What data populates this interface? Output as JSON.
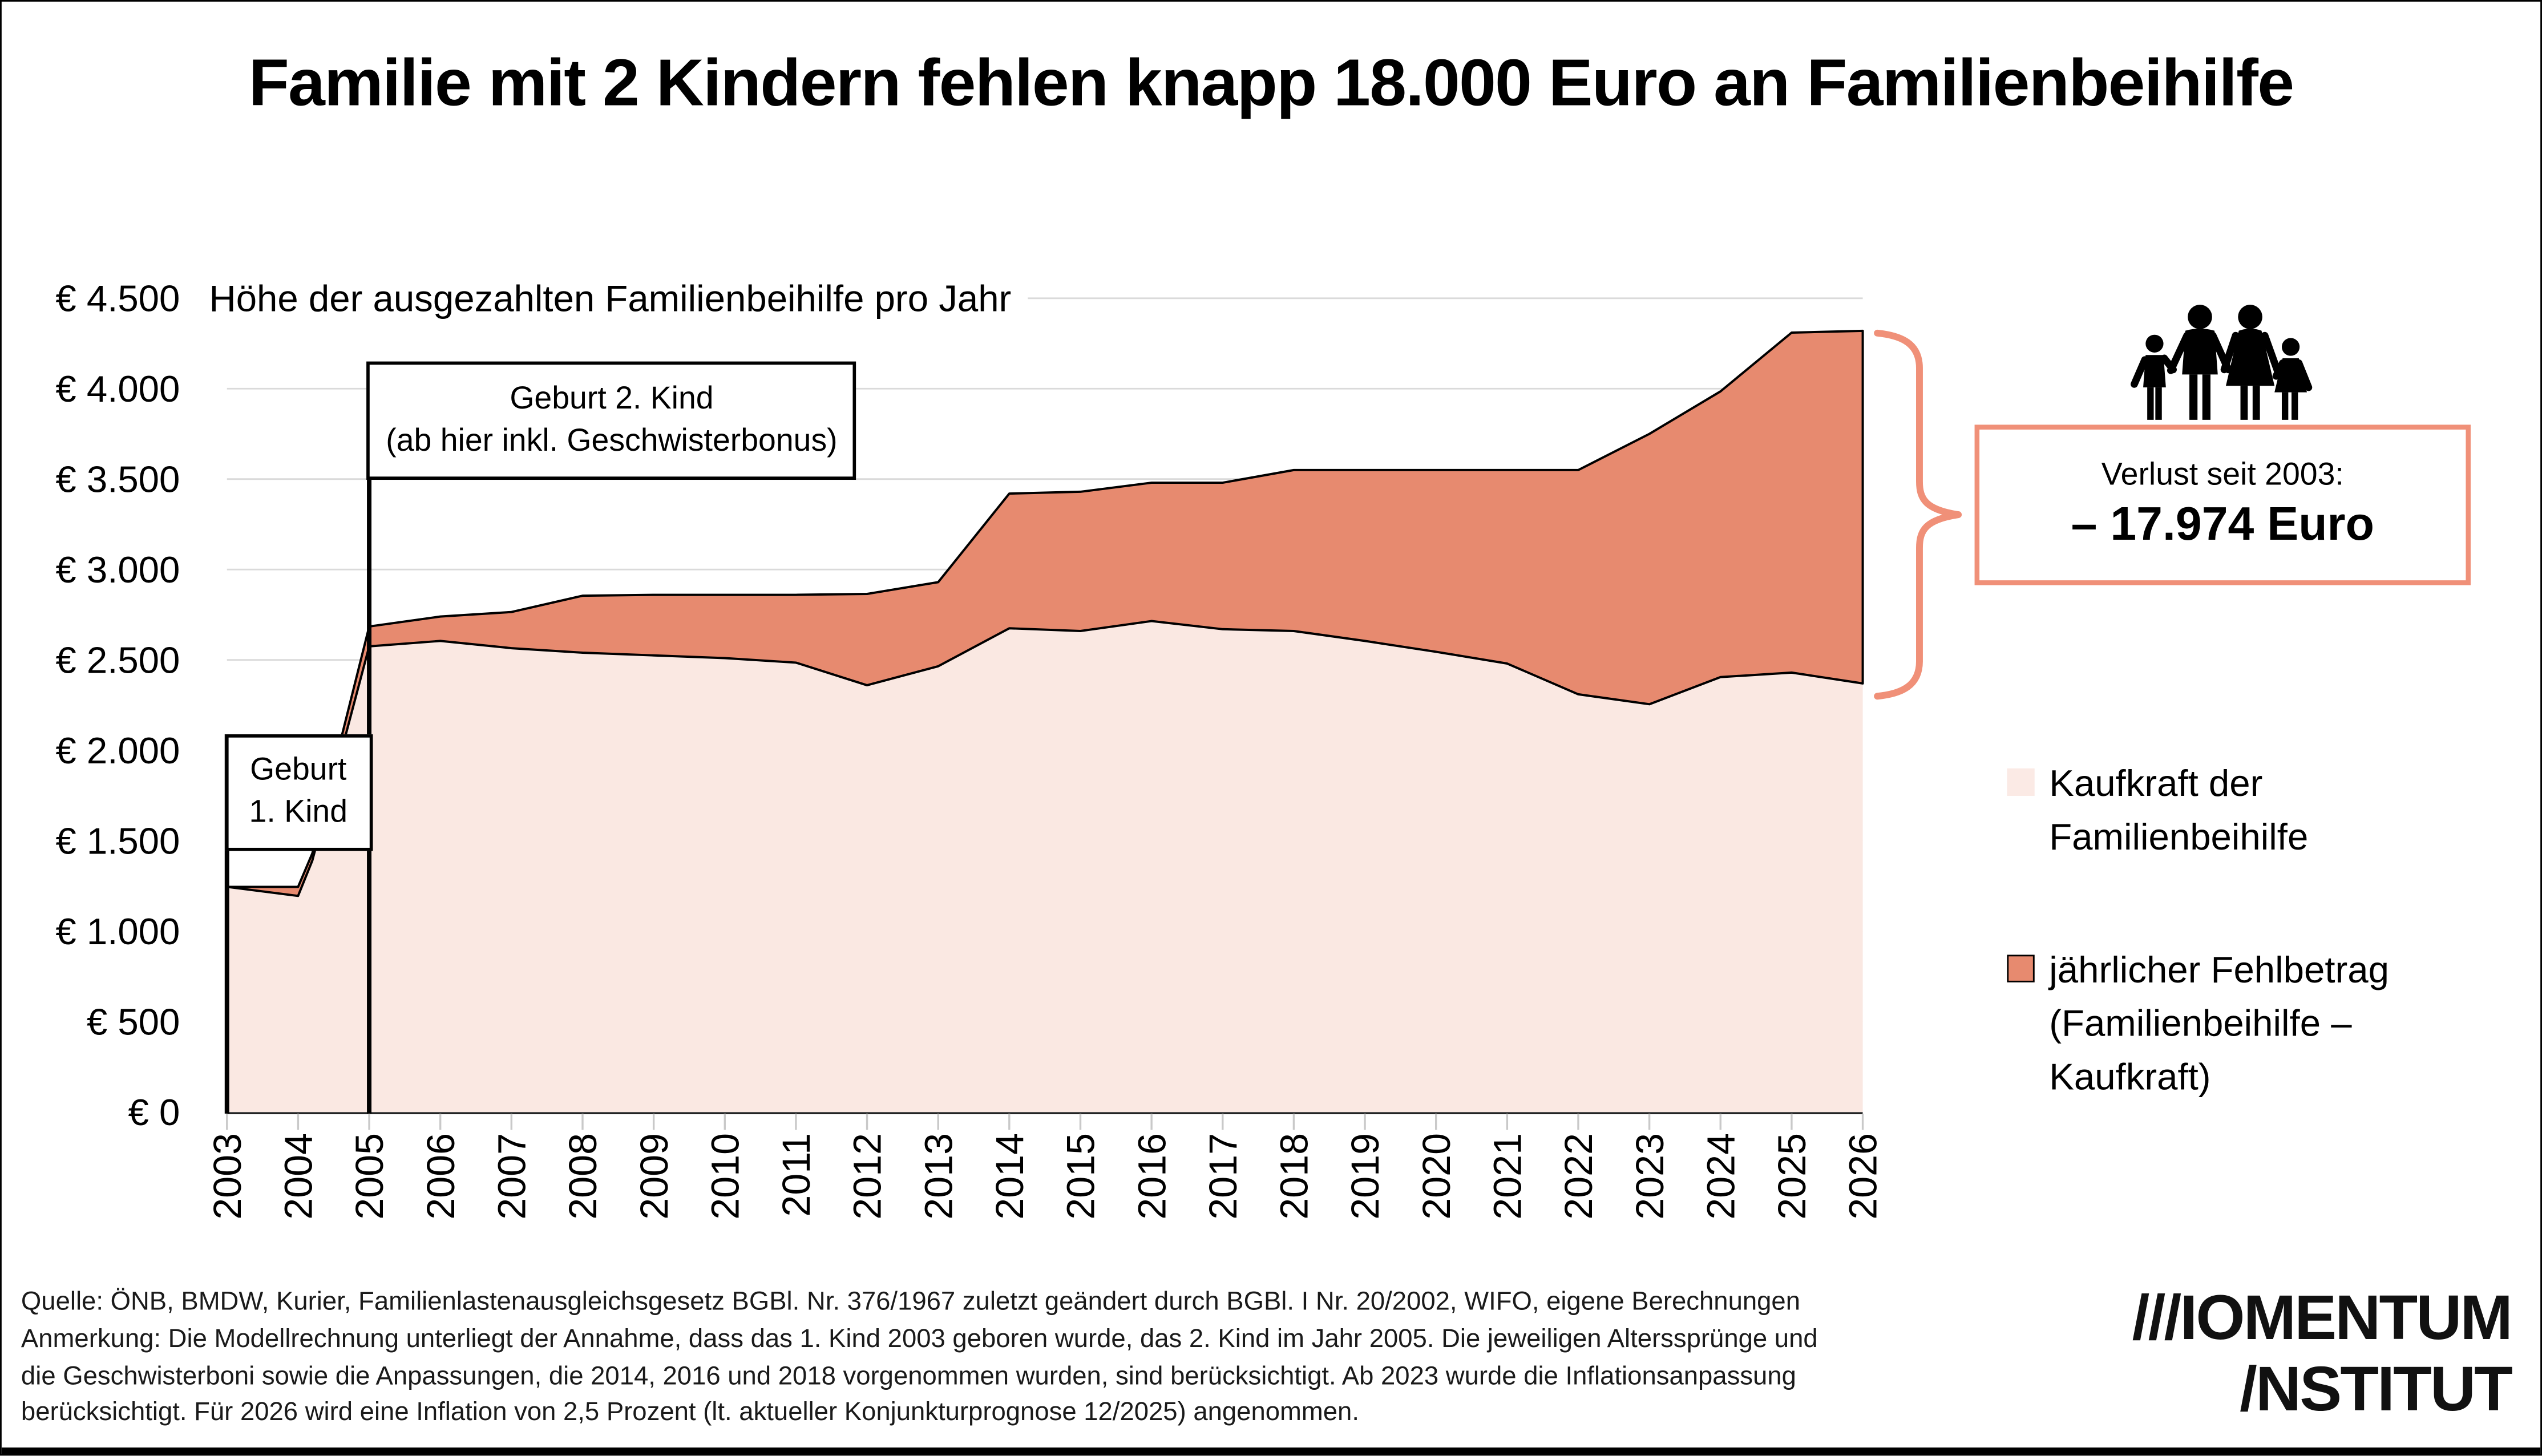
{
  "title": "Familie mit 2 Kindern fehlen knapp 18.000 Euro an Familienbeihilfe",
  "chart": {
    "subtitle": "Höhe der ausgezahlten Familienbeihilfe pro Jahr"
  },
  "annotations": {
    "birth1": {
      "year": 2003,
      "line1": "Geburt",
      "line2": "1. Kind"
    },
    "birth2": {
      "year": 2005,
      "line1": "Geburt 2. Kind",
      "line2": "(ab hier inkl. Geschwisterbonus)"
    },
    "loss": {
      "label": "Verlust seit 2003:",
      "value": "– 17.974 Euro"
    }
  },
  "legend": [
    {
      "label": "Kaufkraft der Familienbeihilfe",
      "lines": [
        "Kaufkraft der",
        "Familienbeihilfe"
      ],
      "color": "#FBEAE5",
      "border": "none"
    },
    {
      "label": "jährlicher Fehlbetrag (Familienbeihilfe – Kaufkraft)",
      "lines": [
        "jährlicher Fehlbetrag",
        "(Familienbeihilfe –",
        "Kaufkraft)"
      ],
      "color": "#E78A6F",
      "border": "#000"
    }
  ],
  "footnote": {
    "lines": [
      "Quelle: ÖNB, BMDW, Kurier, Familienlastenausgleichsgesetz BGBl. Nr. 376/1967 zuletzt geändert durch BGBl. I Nr. 20/2002, WIFO, eigene Berechnungen",
      "Anmerkung: Die Modellrechnung unterliegt der Annahme, dass das 1. Kind 2003 geboren wurde, das 2. Kind im Jahr 2005. Die jeweiligen Alterssprünge und",
      "die Geschwisterboni sowie die Anpassungen, die 2014, 2016 und 2018 vorgenommen wurden, sind berücksichtigt. Ab 2023 wurde die Inflationsanpassung",
      "berücksichtigt. Für 2026 wird eine Inflation von 2,5 Prozent (lt. aktueller Konjunkturprognose 12/2025) angenommen."
    ]
  },
  "logo": {
    "line1": "///IOMENTUM",
    "line2": "/NSTITUT"
  },
  "chart_data": {
    "type": "area",
    "title": "Höhe der ausgezahlten Familienbeihilfe pro Jahr",
    "x": [
      2003,
      2004,
      2004.2,
      2005,
      2006,
      2007,
      2008,
      2009,
      2010,
      2011,
      2012,
      2013,
      2014,
      2015,
      2016,
      2017,
      2018,
      2019,
      2020,
      2021,
      2022,
      2023,
      2024,
      2025,
      2026
    ],
    "series": [
      {
        "name": "Familienbeihilfe (nominal, obere Linie)",
        "values": [
          1245,
          1245,
          1430,
          2685,
          2740,
          2765,
          2855,
          2860,
          2860,
          2860,
          2865,
          2930,
          3420,
          3430,
          3480,
          3480,
          3550,
          3550,
          3550,
          3550,
          3550,
          3750,
          3985,
          4310,
          4320
        ]
      },
      {
        "name": "Kaufkraft der Familienbeihilfe",
        "values": [
          1245,
          1195,
          1390,
          2575,
          2605,
          2565,
          2540,
          2525,
          2510,
          2485,
          2360,
          2465,
          2675,
          2660,
          2715,
          2670,
          2660,
          2605,
          2545,
          2480,
          2310,
          2255,
          2405,
          2430,
          2370
        ]
      }
    ],
    "xlim": [
      2003,
      2026
    ],
    "ylim": [
      0,
      4500
    ],
    "ytick_step": 500,
    "y_tick_labels": [
      "€ 4.500",
      "€ 4.000",
      "€ 3.500",
      "€ 3.000",
      "€ 2.500",
      "€ 2.000",
      "€ 1.500",
      "€ 1.000",
      "€ 500",
      "€ 0"
    ],
    "x_tick_labels": [
      "2003",
      "2004",
      "2005",
      "2006",
      "2007",
      "2008",
      "2009",
      "2010",
      "2011",
      "2012",
      "2013",
      "2014",
      "2015",
      "2016",
      "2017",
      "2018",
      "2019",
      "2020",
      "2021",
      "2022",
      "2023",
      "2024",
      "2025",
      "2026"
    ],
    "grid": "horizontal",
    "legend_position": "right",
    "colors": {
      "kaufkraft_fill": "#FAE8E2",
      "fehlbetrag_fill": "#E78A6F",
      "line": "#000000",
      "accent_border": "#F09078",
      "gridline": "#DADADA",
      "tick": "#C9C9C9"
    }
  }
}
